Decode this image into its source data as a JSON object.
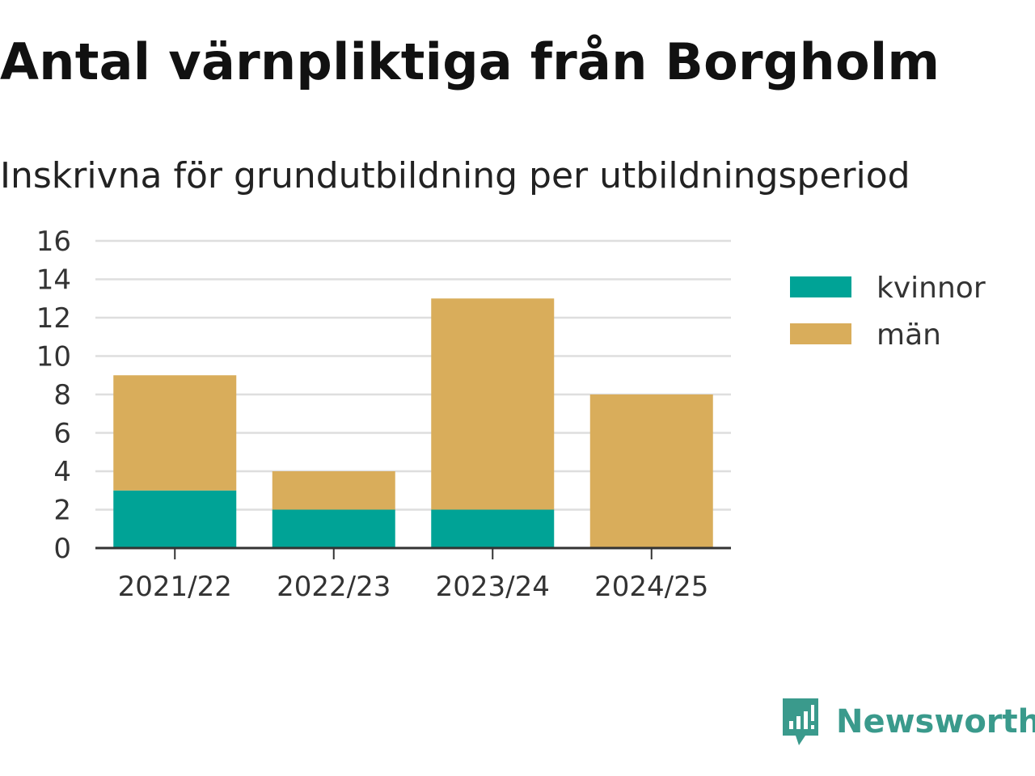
{
  "chart_data": {
    "type": "bar",
    "stacked": true,
    "title": "Antal värnpliktiga från Borgholm",
    "subtitle": "Inskrivna för grundutbildning per utbildningsperiod",
    "xlabel": "",
    "ylabel": "",
    "categories": [
      "2021/22",
      "2022/23",
      "2023/24",
      "2024/25"
    ],
    "series": [
      {
        "name": "kvinnor",
        "color": "#00a396",
        "values": [
          3,
          2,
          2,
          0
        ]
      },
      {
        "name": "män",
        "color": "#d9ad5b",
        "values": [
          6,
          2,
          11,
          8
        ]
      }
    ],
    "ylim": [
      0,
      16
    ],
    "yticks": [
      0,
      2,
      4,
      6,
      8,
      10,
      12,
      14,
      16
    ],
    "grid": true,
    "legend_position": "right"
  },
  "brand": {
    "name": "Newsworthy",
    "icon": "newsworthy-logo-icon",
    "color": "#3a9a8c"
  }
}
